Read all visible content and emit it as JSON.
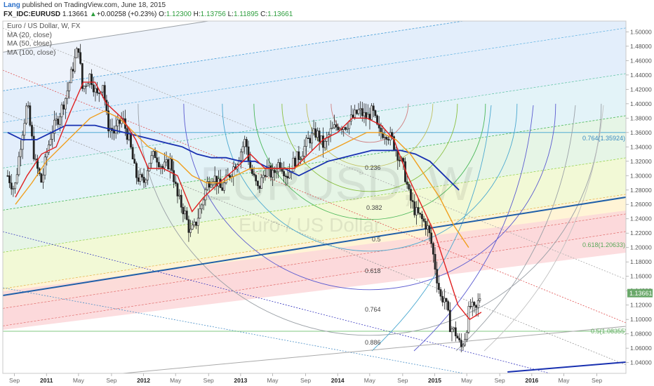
{
  "header": {
    "author": "Lang",
    "published": "published on TradingView.com, June 18, 2015",
    "symbol": "FX_IDC:EURUSD",
    "last": "1.13661",
    "change_arrow": "▲",
    "change": "+0.00258 (+0.23%)",
    "o_label": "O:",
    "o": "1.12300",
    "h_label": "H:",
    "h": "1.13756",
    "l_label": "L:",
    "l": "1.11895",
    "c_label": "C:",
    "c": "1.13661"
  },
  "legend": {
    "title": "Euro / US Dollar, W, FX",
    "ma1": "MA (20, close)",
    "ma2": "MA (50, close)",
    "ma3": "MA (100, close)"
  },
  "watermark": {
    "symbol": "EURUSD, W",
    "name": "Euro / US Dollar"
  },
  "colors": {
    "up": "#2e9e3e",
    "ma20": "#e02020",
    "ma50": "#f0a020",
    "ma100": "#1830b0",
    "last_badge": "#6aa86a",
    "trendline": "#1f5fa8"
  },
  "chart_data": {
    "type": "candlestick",
    "timeframe": "weekly",
    "x_ticks": [
      "Sep",
      "2011",
      "May",
      "Sep",
      "2012",
      "May",
      "Sep",
      "2013",
      "May",
      "Sep",
      "2014",
      "May",
      "Sep",
      "2015",
      "May",
      "Sep",
      "2016",
      "May",
      "Sep"
    ],
    "y_ticks": [
      "1.50000",
      "1.48000",
      "1.46000",
      "1.44000",
      "1.42000",
      "1.40000",
      "1.38000",
      "1.36000",
      "1.34000",
      "1.32000",
      "1.30000",
      "1.28000",
      "1.26000",
      "1.24000",
      "1.22000",
      "1.20000",
      "1.18000",
      "1.16000",
      "1.14000",
      "1.12000",
      "1.10000",
      "1.08000",
      "1.06000",
      "1.04000"
    ],
    "ylim": [
      1.025,
      1.515
    ],
    "last_price": "1.13661",
    "fib_levels": [
      {
        "label": "0.764(1.35924)",
        "value": 1.35924
      },
      {
        "label": "0.618(1.20633)",
        "value": 1.20633
      },
      {
        "label": "0.5(1.08355)",
        "value": 1.08355
      }
    ],
    "arc_labels": [
      "0.236",
      "0.382",
      "0.5",
      "0.618",
      "0.764",
      "0.886"
    ],
    "price_path": [
      [
        2010.6,
        1.3
      ],
      [
        2010.67,
        1.28
      ],
      [
        2010.75,
        1.36
      ],
      [
        2010.8,
        1.4
      ],
      [
        2010.88,
        1.32
      ],
      [
        2010.95,
        1.29
      ],
      [
        2011.0,
        1.33
      ],
      [
        2011.05,
        1.36
      ],
      [
        2011.12,
        1.38
      ],
      [
        2011.2,
        1.41
      ],
      [
        2011.27,
        1.45
      ],
      [
        2011.33,
        1.48
      ],
      [
        2011.37,
        1.42
      ],
      [
        2011.45,
        1.44
      ],
      [
        2011.52,
        1.41
      ],
      [
        2011.58,
        1.43
      ],
      [
        2011.63,
        1.37
      ],
      [
        2011.7,
        1.36
      ],
      [
        2011.78,
        1.38
      ],
      [
        2011.85,
        1.35
      ],
      [
        2011.92,
        1.3
      ],
      [
        2012.0,
        1.29
      ],
      [
        2012.06,
        1.32
      ],
      [
        2012.12,
        1.33
      ],
      [
        2012.2,
        1.31
      ],
      [
        2012.28,
        1.32
      ],
      [
        2012.35,
        1.27
      ],
      [
        2012.42,
        1.25
      ],
      [
        2012.48,
        1.22
      ],
      [
        2012.53,
        1.23
      ],
      [
        2012.6,
        1.26
      ],
      [
        2012.66,
        1.29
      ],
      [
        2012.72,
        1.3
      ],
      [
        2012.8,
        1.28
      ],
      [
        2012.88,
        1.3
      ],
      [
        2012.96,
        1.32
      ],
      [
        2013.05,
        1.35
      ],
      [
        2013.1,
        1.31
      ],
      [
        2013.18,
        1.28
      ],
      [
        2013.26,
        1.31
      ],
      [
        2013.33,
        1.3
      ],
      [
        2013.4,
        1.32
      ],
      [
        2013.48,
        1.3
      ],
      [
        2013.55,
        1.32
      ],
      [
        2013.62,
        1.33
      ],
      [
        2013.7,
        1.35
      ],
      [
        2013.78,
        1.36
      ],
      [
        2013.86,
        1.34
      ],
      [
        2013.92,
        1.36
      ],
      [
        2014.0,
        1.37
      ],
      [
        2014.08,
        1.37
      ],
      [
        2014.15,
        1.38
      ],
      [
        2014.22,
        1.39
      ],
      [
        2014.3,
        1.38
      ],
      [
        2014.36,
        1.39
      ],
      [
        2014.42,
        1.36
      ],
      [
        2014.5,
        1.36
      ],
      [
        2014.56,
        1.35
      ],
      [
        2014.62,
        1.33
      ],
      [
        2014.68,
        1.31
      ],
      [
        2014.74,
        1.27
      ],
      [
        2014.8,
        1.25
      ],
      [
        2014.86,
        1.24
      ],
      [
        2014.92,
        1.23
      ],
      [
        2014.96,
        1.21
      ],
      [
        2015.02,
        1.16
      ],
      [
        2015.06,
        1.13
      ],
      [
        2015.1,
        1.13
      ],
      [
        2015.16,
        1.09
      ],
      [
        2015.22,
        1.08
      ],
      [
        2015.27,
        1.06
      ],
      [
        2015.32,
        1.08
      ],
      [
        2015.36,
        1.12
      ],
      [
        2015.42,
        1.11
      ],
      [
        2015.46,
        1.13
      ],
      [
        2015.48,
        1.136
      ]
    ],
    "ma20_path": [
      [
        2010.68,
        1.27
      ],
      [
        2010.8,
        1.3
      ],
      [
        2010.95,
        1.33
      ],
      [
        2011.1,
        1.34
      ],
      [
        2011.25,
        1.39
      ],
      [
        2011.38,
        1.43
      ],
      [
        2011.5,
        1.43
      ],
      [
        2011.62,
        1.4
      ],
      [
        2011.78,
        1.38
      ],
      [
        2011.92,
        1.35
      ],
      [
        2012.05,
        1.31
      ],
      [
        2012.2,
        1.31
      ],
      [
        2012.35,
        1.3
      ],
      [
        2012.5,
        1.25
      ],
      [
        2012.62,
        1.27
      ],
      [
        2012.78,
        1.29
      ],
      [
        2012.95,
        1.31
      ],
      [
        2013.1,
        1.33
      ],
      [
        2013.25,
        1.31
      ],
      [
        2013.4,
        1.31
      ],
      [
        2013.55,
        1.31
      ],
      [
        2013.7,
        1.33
      ],
      [
        2013.85,
        1.35
      ],
      [
        2014.0,
        1.36
      ],
      [
        2014.15,
        1.38
      ],
      [
        2014.3,
        1.38
      ],
      [
        2014.45,
        1.37
      ],
      [
        2014.58,
        1.35
      ],
      [
        2014.72,
        1.3
      ],
      [
        2014.86,
        1.26
      ],
      [
        2015.0,
        1.22
      ],
      [
        2015.12,
        1.17
      ],
      [
        2015.24,
        1.12
      ],
      [
        2015.36,
        1.1
      ],
      [
        2015.48,
        1.11
      ]
    ],
    "ma50_path": [
      [
        2010.68,
        1.26
      ],
      [
        2010.85,
        1.29
      ],
      [
        2011.0,
        1.32
      ],
      [
        2011.15,
        1.34
      ],
      [
        2011.3,
        1.36
      ],
      [
        2011.45,
        1.38
      ],
      [
        2011.6,
        1.39
      ],
      [
        2011.75,
        1.38
      ],
      [
        2011.9,
        1.36
      ],
      [
        2012.05,
        1.34
      ],
      [
        2012.2,
        1.33
      ],
      [
        2012.35,
        1.32
      ],
      [
        2012.5,
        1.3
      ],
      [
        2012.65,
        1.29
      ],
      [
        2012.8,
        1.29
      ],
      [
        2012.95,
        1.3
      ],
      [
        2013.1,
        1.31
      ],
      [
        2013.25,
        1.31
      ],
      [
        2013.4,
        1.31
      ],
      [
        2013.55,
        1.31
      ],
      [
        2013.7,
        1.32
      ],
      [
        2013.85,
        1.33
      ],
      [
        2014.0,
        1.34
      ],
      [
        2014.15,
        1.35
      ],
      [
        2014.3,
        1.36
      ],
      [
        2014.45,
        1.36
      ],
      [
        2014.6,
        1.35
      ],
      [
        2014.75,
        1.33
      ],
      [
        2014.9,
        1.3
      ],
      [
        2015.05,
        1.27
      ],
      [
        2015.2,
        1.23
      ],
      [
        2015.35,
        1.2
      ]
    ],
    "ma100_path": [
      [
        2010.6,
        1.36
      ],
      [
        2010.75,
        1.35
      ],
      [
        2010.9,
        1.35
      ],
      [
        2011.05,
        1.36
      ],
      [
        2011.2,
        1.37
      ],
      [
        2011.35,
        1.37
      ],
      [
        2011.5,
        1.37
      ],
      [
        2011.65,
        1.365
      ],
      [
        2011.8,
        1.36
      ],
      [
        2011.95,
        1.355
      ],
      [
        2012.1,
        1.35
      ],
      [
        2012.25,
        1.345
      ],
      [
        2012.4,
        1.34
      ],
      [
        2012.55,
        1.33
      ],
      [
        2012.7,
        1.325
      ],
      [
        2012.85,
        1.325
      ],
      [
        2013.0,
        1.32
      ],
      [
        2013.15,
        1.32
      ],
      [
        2013.3,
        1.31
      ],
      [
        2013.45,
        1.31
      ],
      [
        2013.6,
        1.3
      ],
      [
        2013.75,
        1.31
      ],
      [
        2013.9,
        1.32
      ],
      [
        2014.05,
        1.325
      ],
      [
        2014.2,
        1.33
      ],
      [
        2014.35,
        1.335
      ],
      [
        2014.5,
        1.335
      ],
      [
        2014.65,
        1.335
      ],
      [
        2014.8,
        1.33
      ],
      [
        2014.95,
        1.32
      ],
      [
        2015.1,
        1.3
      ],
      [
        2015.25,
        1.28
      ]
    ]
  }
}
